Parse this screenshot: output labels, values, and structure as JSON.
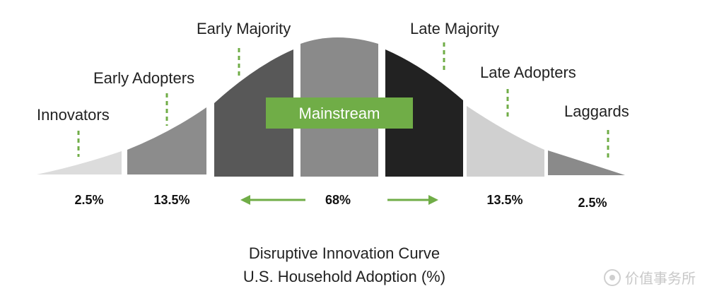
{
  "segments": [
    {
      "label": "Innovators",
      "percent": "2.5%",
      "fill": "#dcdcdc"
    },
    {
      "label": "Early Adopters",
      "percent": "13.5%",
      "fill": "#8c8c8c"
    },
    {
      "label": "Early Majority",
      "percent": "",
      "fill": "#585858"
    },
    {
      "label": "",
      "percent": "",
      "fill": "#8a8a8a"
    },
    {
      "label": "Late Majority",
      "percent": "",
      "fill": "#222222"
    },
    {
      "label": "Late Adopters",
      "percent": "13.5%",
      "fill": "#d0d0d0"
    },
    {
      "label": "Laggards",
      "percent": "2.5%",
      "fill": "#8a8a8a"
    }
  ],
  "mainstream": {
    "label": "Mainstream",
    "percent": "68%",
    "badge_color": "#70ad47",
    "arrow_color": "#70ad47"
  },
  "title": {
    "line1": "Disruptive Innovation Curve",
    "line2": "U.S. Household Adoption (%)"
  },
  "watermark": {
    "text": "价值事务所"
  },
  "colors": {
    "dash": "#70ad47"
  }
}
